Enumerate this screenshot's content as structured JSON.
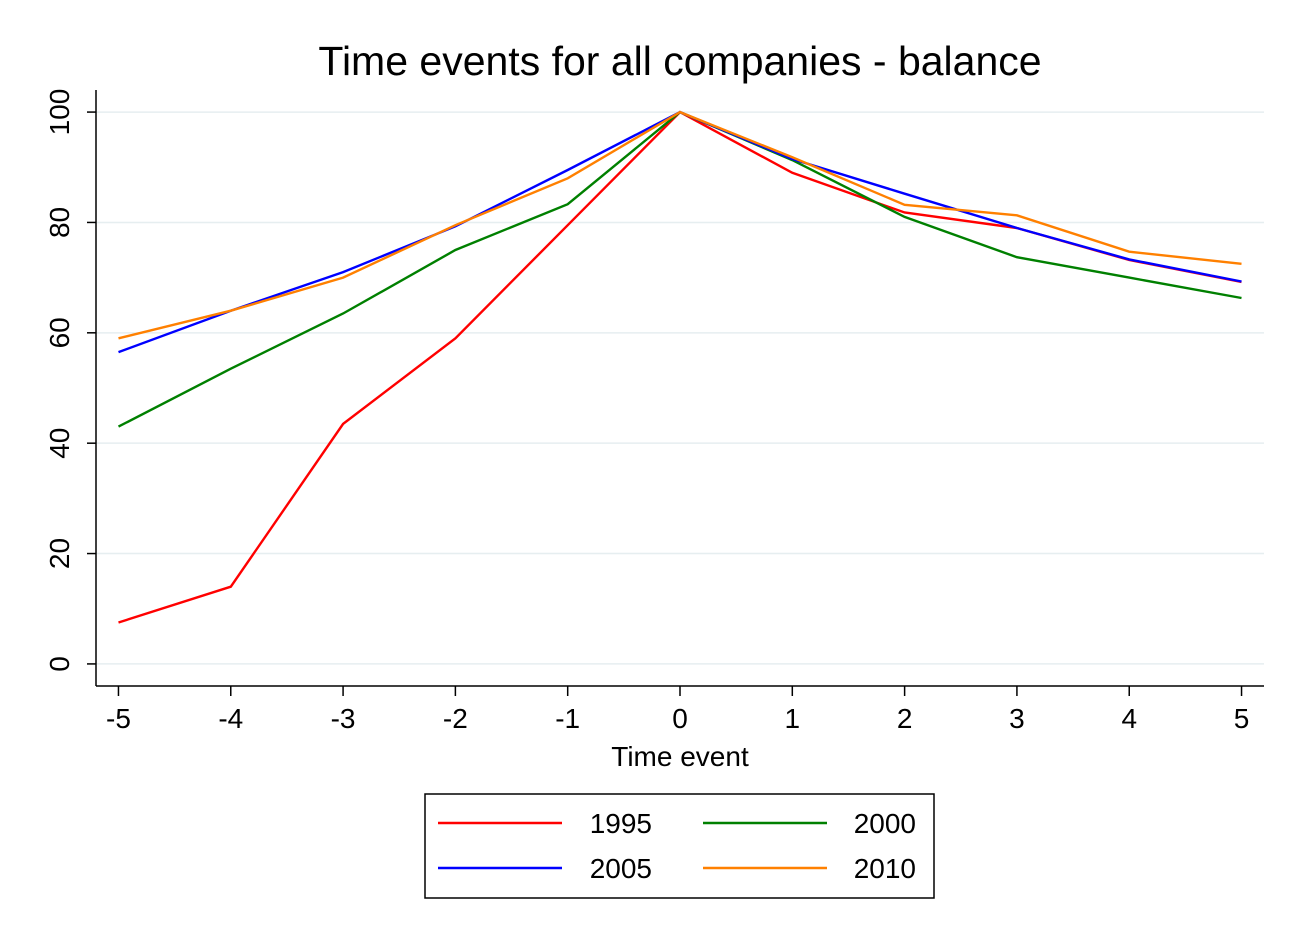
{
  "chart_data": {
    "type": "line",
    "title": "Time events for all companies - balance",
    "xlabel": "Time event",
    "ylabel": "",
    "x": [
      -5,
      -4,
      -3,
      -2,
      -1,
      0,
      1,
      2,
      3,
      4,
      5
    ],
    "x_ticks": [
      "-5",
      "-4",
      "-3",
      "-2",
      "-1",
      "0",
      "1",
      "2",
      "3",
      "4",
      "5"
    ],
    "y_ticks": [
      "0",
      "20",
      "40",
      "60",
      "80",
      "100"
    ],
    "xlim": [
      -5.2,
      5.2
    ],
    "ylim": [
      -4,
      104
    ],
    "grid": true,
    "legend_position": "bottom",
    "series": [
      {
        "name": "1995",
        "color": "#ff0000",
        "values": [
          7.5,
          14,
          43.5,
          59,
          79.5,
          100,
          89,
          81.8,
          79,
          73.2,
          69.2
        ]
      },
      {
        "name": "2000",
        "color": "#008000",
        "values": [
          43,
          53.5,
          63.5,
          75,
          83.3,
          100,
          91.3,
          81,
          73.7,
          70,
          66.3
        ]
      },
      {
        "name": "2005",
        "color": "#0000ff",
        "values": [
          56.5,
          64,
          71,
          79.3,
          89.5,
          100,
          91.5,
          85.2,
          79,
          73.3,
          69.3
        ]
      },
      {
        "name": "2010",
        "color": "#ff8000",
        "values": [
          59,
          64,
          70,
          79.5,
          88,
          100,
          91.8,
          83.2,
          81.3,
          74.7,
          72.5
        ]
      }
    ]
  }
}
